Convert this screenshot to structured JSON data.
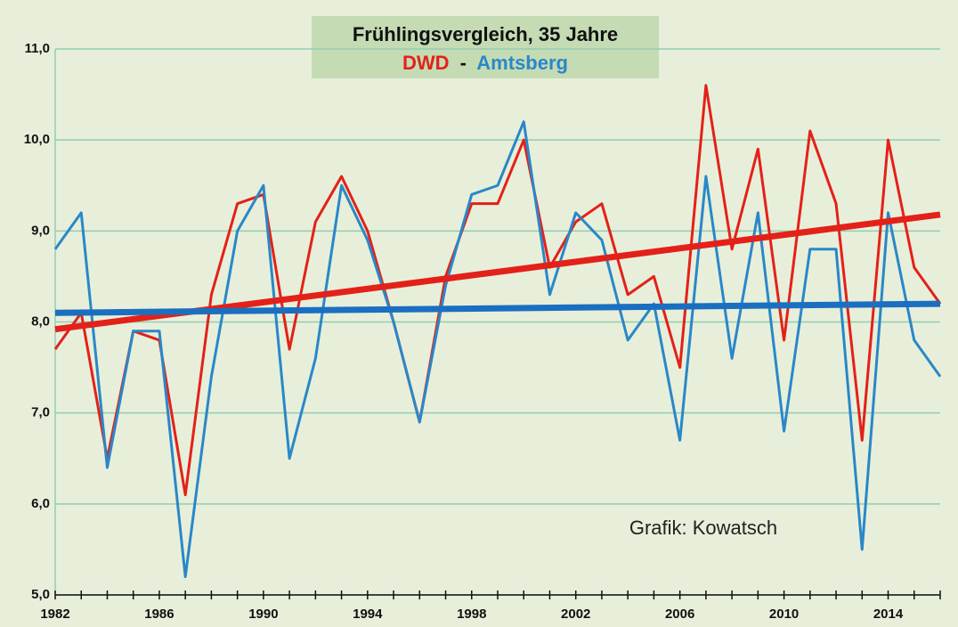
{
  "chart_data": {
    "type": "line",
    "title": "Frühlingsvergleich, 35 Jahre",
    "legend_separator": "-",
    "annotation": "Grafik: Kowatsch",
    "x": [
      1982,
      1983,
      1984,
      1985,
      1986,
      1987,
      1988,
      1989,
      1990,
      1991,
      1992,
      1993,
      1994,
      1995,
      1996,
      1997,
      1998,
      1999,
      2000,
      2001,
      2002,
      2003,
      2004,
      2005,
      2006,
      2007,
      2008,
      2009,
      2010,
      2011,
      2012,
      2013,
      2014,
      2015,
      2016
    ],
    "xlim": [
      1982,
      2016
    ],
    "xticks": [
      1982,
      1986,
      1990,
      1994,
      1998,
      2002,
      2006,
      2010,
      2014
    ],
    "ylim": [
      5,
      11
    ],
    "yticks": [
      {
        "value": 5,
        "label": "5,0"
      },
      {
        "value": 6,
        "label": "6,0"
      },
      {
        "value": 7,
        "label": "7,0"
      },
      {
        "value": 8,
        "label": "8,0"
      },
      {
        "value": 9,
        "label": "9,0"
      },
      {
        "value": 10,
        "label": "10,0"
      },
      {
        "value": 11,
        "label": "11,0"
      }
    ],
    "grid": true,
    "series": [
      {
        "name": "DWD",
        "color": "#e32119",
        "values": [
          7.7,
          8.1,
          6.5,
          7.9,
          7.8,
          6.1,
          8.3,
          9.3,
          9.4,
          7.7,
          9.1,
          9.6,
          9.0,
          8.0,
          6.9,
          8.5,
          9.3,
          9.3,
          10.0,
          8.6,
          9.1,
          9.3,
          8.3,
          8.5,
          7.5,
          10.6,
          8.8,
          9.9,
          7.8,
          10.1,
          9.3,
          6.7,
          10.0,
          8.6,
          8.2
        ]
      },
      {
        "name": "Amtsberg",
        "color": "#2a87c8",
        "values": [
          8.8,
          9.2,
          6.4,
          7.9,
          7.9,
          5.2,
          7.4,
          9.0,
          9.5,
          6.5,
          7.6,
          9.5,
          8.9,
          8.0,
          6.9,
          8.4,
          9.4,
          9.5,
          10.2,
          8.3,
          9.2,
          8.9,
          7.8,
          8.2,
          6.7,
          9.6,
          7.6,
          9.2,
          6.8,
          8.8,
          8.8,
          5.5,
          9.2,
          7.8,
          7.4
        ]
      }
    ],
    "trends": [
      {
        "color": "#e32119",
        "x": [
          1982,
          2016
        ],
        "values": [
          7.92,
          9.18
        ]
      },
      {
        "color": "#1a6fc0",
        "x": [
          1982,
          2016
        ],
        "values": [
          8.1,
          8.2
        ]
      }
    ]
  }
}
